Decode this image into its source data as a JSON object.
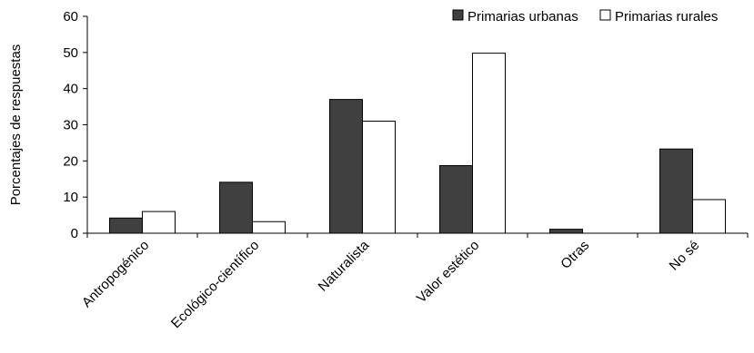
{
  "chart_data": {
    "type": "bar",
    "title": "",
    "xlabel": "",
    "ylabel": "Porcentajes de respuestas",
    "ylim": [
      0,
      60
    ],
    "yticks": [
      0,
      10,
      20,
      30,
      40,
      50,
      60
    ],
    "grid": false,
    "legend_position": "top-right",
    "categories": [
      "Antropogénico",
      "Ecológico-científico",
      "Naturalista",
      "Valor estético",
      "Otras",
      "No sé"
    ],
    "series": [
      {
        "name": "Primarias urbanas",
        "color": "#404040",
        "values": [
          4.2,
          14.1,
          37.0,
          18.7,
          1.1,
          23.3
        ]
      },
      {
        "name": "Primarias rurales",
        "color": "#ffffff",
        "values": [
          6.0,
          3.2,
          31.0,
          49.8,
          0,
          9.3
        ]
      }
    ]
  }
}
